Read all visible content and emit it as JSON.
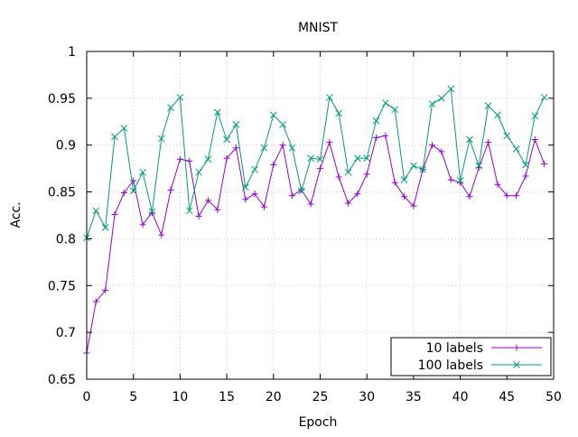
{
  "chart_data": {
    "type": "line",
    "title": "MNIST",
    "xlabel": "Epoch",
    "ylabel": "Acc.",
    "xlim": [
      0,
      50
    ],
    "ylim": [
      0.65,
      1
    ],
    "xticks": [
      "0",
      "5",
      "10",
      "15",
      "20",
      "25",
      "30",
      "35",
      "40",
      "45",
      "50"
    ],
    "yticks": [
      "0.65",
      "0.7",
      "0.75",
      "0.8",
      "0.85",
      "0.9",
      "0.95",
      "1"
    ],
    "grid": true,
    "legend_position": "bottom-right",
    "x": [
      0,
      1,
      2,
      3,
      4,
      5,
      6,
      7,
      8,
      9,
      10,
      11,
      12,
      13,
      14,
      15,
      16,
      17,
      18,
      19,
      20,
      21,
      22,
      23,
      24,
      25,
      26,
      27,
      28,
      29,
      30,
      31,
      32,
      33,
      34,
      35,
      36,
      37,
      38,
      39,
      40,
      41,
      42,
      43,
      44,
      45,
      46,
      47,
      48,
      49
    ],
    "series": [
      {
        "name": "10 labels",
        "color": "#9400d3",
        "marker": "plus",
        "values": [
          0.678,
          0.733,
          0.745,
          0.826,
          0.849,
          0.862,
          0.815,
          0.828,
          0.804,
          0.852,
          0.885,
          0.883,
          0.824,
          0.841,
          0.831,
          0.886,
          0.897,
          0.842,
          0.848,
          0.834,
          0.879,
          0.9,
          0.846,
          0.852,
          0.837,
          0.875,
          0.903,
          0.866,
          0.838,
          0.848,
          0.869,
          0.908,
          0.91,
          0.86,
          0.845,
          0.835,
          0.874,
          0.9,
          0.893,
          0.863,
          0.86,
          0.845,
          0.876,
          0.903,
          0.858,
          0.846,
          0.846,
          0.867,
          0.906,
          0.88
        ]
      },
      {
        "name": "100 labels",
        "color": "#009e73",
        "marker": "cross",
        "values": [
          0.801,
          0.83,
          0.812,
          0.909,
          0.918,
          0.851,
          0.871,
          0.829,
          0.907,
          0.94,
          0.951,
          0.83,
          0.871,
          0.885,
          0.935,
          0.906,
          0.922,
          0.855,
          0.874,
          0.897,
          0.932,
          0.922,
          0.897,
          0.851,
          0.886,
          0.885,
          0.951,
          0.934,
          0.871,
          0.886,
          0.886,
          0.926,
          0.945,
          0.938,
          0.863,
          0.878,
          0.874,
          0.944,
          0.95,
          0.96,
          0.862,
          0.906,
          0.878,
          0.942,
          0.932,
          0.91,
          0.896,
          0.879,
          0.931,
          0.951
        ]
      }
    ]
  }
}
